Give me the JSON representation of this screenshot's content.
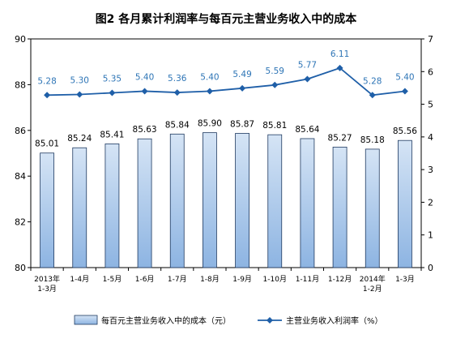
{
  "chart_data": {
    "type": "bar+line",
    "title": "图2  各月累计利润率与每百元主营业务收入中的成本",
    "categories": [
      [
        "2013年",
        "1-3月"
      ],
      [
        "1-4月"
      ],
      [
        "1-5月"
      ],
      [
        "1-6月"
      ],
      [
        "1-7月"
      ],
      [
        "1-8月"
      ],
      [
        "1-9月"
      ],
      [
        "1-10月"
      ],
      [
        "1-11月"
      ],
      [
        "1-12月"
      ],
      [
        "2014年",
        "1-2月"
      ],
      [
        "1-3月"
      ]
    ],
    "series": [
      {
        "name": "每百元主营业务收入中的成本（元）",
        "type": "bar",
        "axis": "left",
        "values": [
          85.01,
          85.24,
          85.41,
          85.63,
          85.84,
          85.9,
          85.87,
          85.81,
          85.64,
          85.27,
          85.18,
          85.56
        ]
      },
      {
        "name": "主营业务收入利润率（%）",
        "type": "line",
        "axis": "right",
        "values": [
          5.28,
          5.3,
          5.35,
          5.4,
          5.36,
          5.4,
          5.49,
          5.59,
          5.77,
          6.11,
          5.28,
          5.4
        ]
      }
    ],
    "left_axis": {
      "min": 80,
      "max": 90,
      "ticks": [
        80,
        82,
        84,
        86,
        88,
        90
      ]
    },
    "right_axis": {
      "min": 0,
      "max": 7,
      "ticks": [
        0,
        1,
        2,
        3,
        4,
        5,
        6,
        7
      ]
    },
    "legend_position": "bottom",
    "grid": false
  },
  "colors": {
    "bar_fill_top": "#c5d9f1",
    "bar_fill_bottom": "#8db4e2",
    "bar_stroke": "#1f3a60",
    "line": "#1f5fa8",
    "line_label": "#2e75b6"
  }
}
